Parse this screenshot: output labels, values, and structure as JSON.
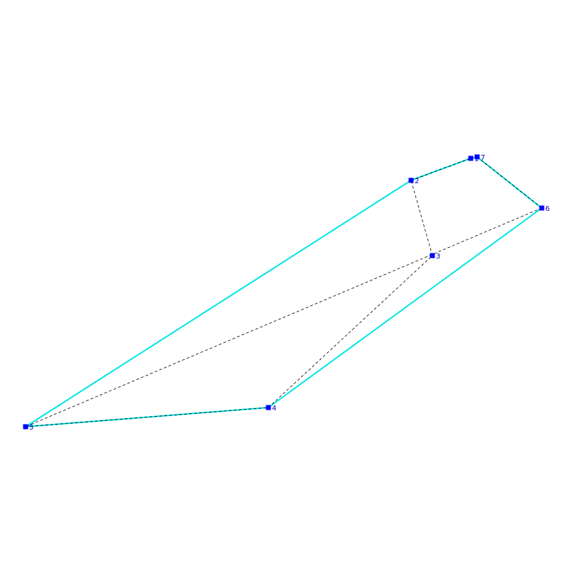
{
  "colors": {
    "background": "#ffffff",
    "hull_edge": "#00e5e5",
    "path_edge": "#000000",
    "vertex": "#0000ff",
    "label": "#0000cc"
  },
  "vertices": [
    {
      "id": "1",
      "label": "1"
    },
    {
      "id": "2",
      "label": "2"
    },
    {
      "id": "3",
      "label": "3"
    },
    {
      "id": "4",
      "label": "4"
    },
    {
      "id": "5",
      "label": "5"
    },
    {
      "id": "6",
      "label": "6"
    },
    {
      "id": "7",
      "label": "7"
    }
  ],
  "hull_edges": [
    [
      "1",
      "7"
    ],
    [
      "7",
      "6"
    ],
    [
      "6",
      "4"
    ],
    [
      "4",
      "5"
    ],
    [
      "5",
      "2"
    ],
    [
      "2",
      "1"
    ]
  ],
  "path_edges": [
    [
      "1",
      "7"
    ],
    [
      "7",
      "6"
    ],
    [
      "6",
      "5"
    ],
    [
      "5",
      "4"
    ],
    [
      "4",
      "3"
    ],
    [
      "3",
      "2"
    ],
    [
      "2",
      "1"
    ]
  ]
}
